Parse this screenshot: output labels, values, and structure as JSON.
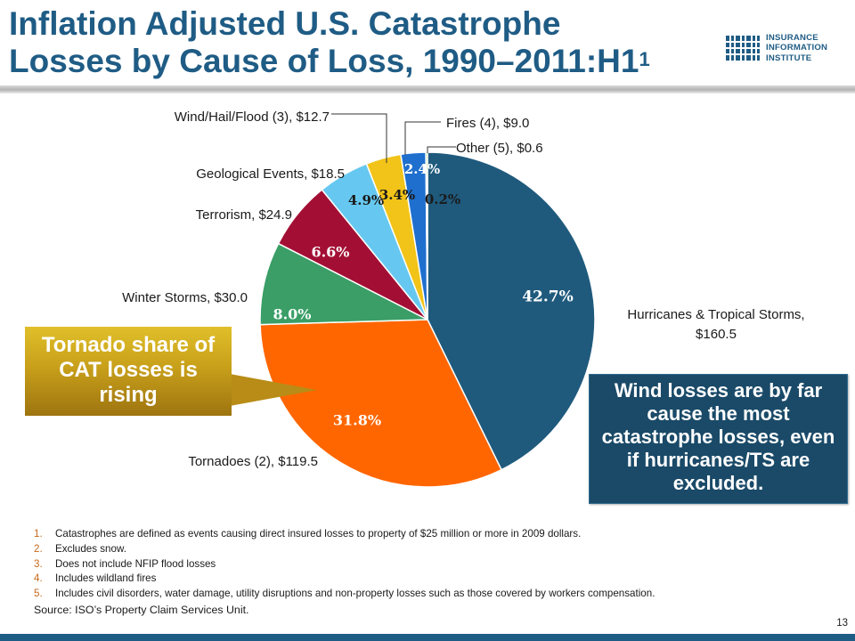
{
  "title": {
    "line1": "Inflation Adjusted U.S. Catastrophe",
    "line2": "Losses by Cause of Loss, 1990–2011:H1",
    "superscript": "1"
  },
  "logo": {
    "line1": "INSURANCE",
    "line2": "INFORMATION",
    "line3": "INSTITUTE",
    "icon": "iii-logo-icon"
  },
  "chart_data": {
    "type": "pie",
    "title": "",
    "start": "12 o'clock",
    "direction": "clockwise",
    "slices": [
      {
        "name": "Hurricanes & Tropical Storms, $160.5",
        "value": 160.5,
        "percent": 42.7,
        "percent_label": "42.7%",
        "color": "#1f5a7d",
        "label_color": "#ffffff"
      },
      {
        "name": "Tornadoes (2), $119.5",
        "value": 119.5,
        "percent": 31.8,
        "percent_label": "31.8%",
        "color": "#ff6600",
        "label_color": "#ffffff"
      },
      {
        "name": "Winter Storms, $30.0",
        "value": 30.0,
        "percent": 8.0,
        "percent_label": "8.0%",
        "color": "#3a9e66",
        "label_color": "#ffffff"
      },
      {
        "name": "Terrorism, $24.9",
        "value": 24.9,
        "percent": 6.6,
        "percent_label": "6.6%",
        "color": "#a30f34",
        "label_color": "#ffffff"
      },
      {
        "name": "Geological Events, $18.5",
        "value": 18.5,
        "percent": 4.9,
        "percent_label": "4.9%",
        "color": "#66c8f0",
        "label_color": "#1a1a1a"
      },
      {
        "name": "Wind/Hail/Flood (3), $12.7",
        "value": 12.7,
        "percent": 3.4,
        "percent_label": "3.4%",
        "color": "#f2c318",
        "label_color": "#1a1a1a"
      },
      {
        "name": "Fires (4), $9.0",
        "value": 9.0,
        "percent": 2.4,
        "percent_label": "2.4%",
        "color": "#1f6fce",
        "label_color": "#ffffff"
      },
      {
        "name": "Other (5), $0.6",
        "value": 0.6,
        "percent": 0.2,
        "percent_label": "0.2%",
        "color": "#78c238",
        "label_color": "#1a1a1a"
      }
    ]
  },
  "callouts": {
    "left": "Tornado share of CAT losses is rising",
    "left_color": "#c8a01a",
    "right": "Wind losses are by far cause the most catastrophe losses, even if hurricanes/TS are excluded.",
    "right_color": "#1a4a68"
  },
  "footnotes": [
    {
      "num": "1.",
      "text": "Catastrophes are defined as events causing direct insured losses to property of $25 million or more in 2009 dollars."
    },
    {
      "num": "2.",
      "text": "Excludes snow."
    },
    {
      "num": "3.",
      "text": "Does not include NFIP flood losses"
    },
    {
      "num": "4.",
      "text": "Includes wildland fires"
    },
    {
      "num": "5.",
      "text": "Includes civil disorders, water damage, utility disruptions and non-property losses such as those covered by workers compensation."
    }
  ],
  "source": "Source: ISO’s Property Claim Services Unit.",
  "page_number": "13",
  "colors": {
    "title": "#1f5c85",
    "footnote_number": "#c56a1a"
  }
}
